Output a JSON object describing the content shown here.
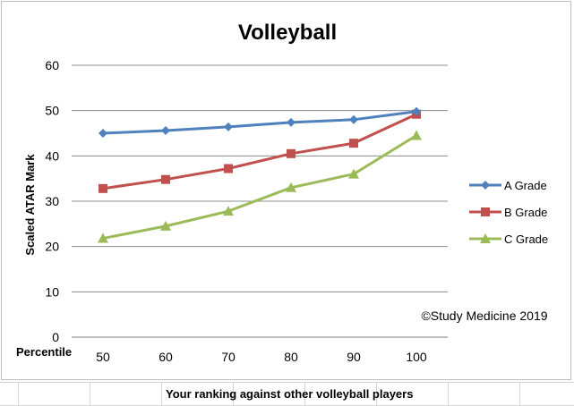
{
  "chart_data": {
    "type": "line",
    "title": "Volleyball",
    "xlabel": "Your ranking against other volleyball players",
    "ylabel": "Scaled ATAR Mark",
    "x_axis_label_left": "Percentile",
    "categories": [
      "50",
      "60",
      "70",
      "80",
      "90",
      "100"
    ],
    "ylim": [
      0,
      60
    ],
    "yticks": [
      "0",
      "10",
      "20",
      "30",
      "40",
      "50",
      "60"
    ],
    "grid": true,
    "legend_position": "right",
    "annotation": "©Study  Medicine  2019",
    "series": [
      {
        "name": "A Grade",
        "values": [
          45,
          45.6,
          46.4,
          47.4,
          48,
          49.8
        ],
        "color": "#4f81bd",
        "marker": "diamond"
      },
      {
        "name": "B Grade",
        "values": [
          32.8,
          34.8,
          37.2,
          40.5,
          42.8,
          49.2
        ],
        "color": "#c0504d",
        "marker": "square"
      },
      {
        "name": "C Grade",
        "values": [
          21.8,
          24.5,
          27.8,
          33,
          36,
          44.5
        ],
        "color": "#9bbb59",
        "marker": "triangle"
      }
    ]
  }
}
